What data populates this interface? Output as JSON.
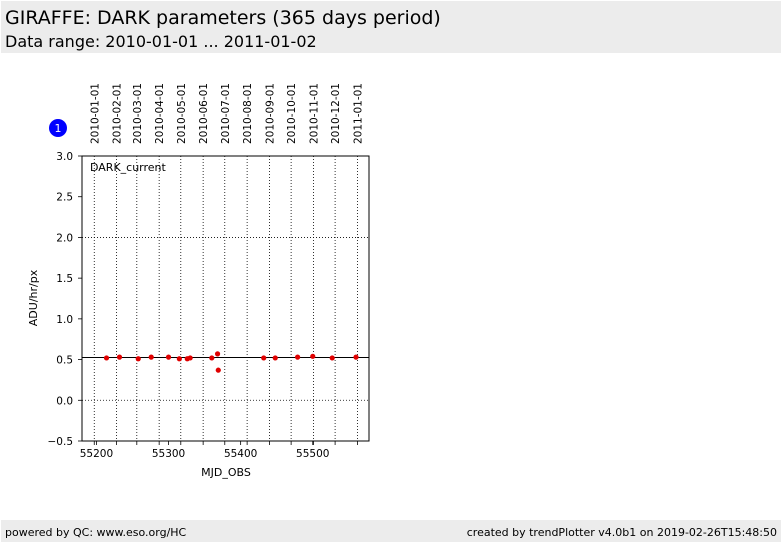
{
  "header": {
    "title": "GIRAFFE: DARK parameters (365 days period)",
    "subtitle": "Data range: 2010-01-01 ... 2011-01-02"
  },
  "footer": {
    "left": "powered by QC: www.eso.org/HC",
    "right": "created by trendPlotter v4.0b1 on 2019-02-26T15:48:50"
  },
  "colors": {
    "points": "#e00000",
    "badge": "#0000ff",
    "band": "#ececec"
  },
  "chart_data": {
    "type": "scatter",
    "panel_number": "1",
    "panel_label": "DARK_current",
    "xlabel": "MJD_OBS",
    "ylabel": "ADU/hr/px",
    "xlim": [
      55180,
      55578
    ],
    "ylim": [
      -0.5,
      3.0
    ],
    "x_ticks": [
      55200,
      55300,
      55400,
      55500
    ],
    "y_ticks": [
      -0.5,
      0.0,
      0.5,
      1.0,
      1.5,
      2.0,
      2.5,
      3.0
    ],
    "y_tick_labels": [
      "−0.5",
      "0.0",
      "0.5",
      "1.0",
      "1.5",
      "2.0",
      "2.5",
      "3.0"
    ],
    "y_dotted_gridlines": [
      0.0,
      2.0
    ],
    "reference_line": 0.525,
    "date_ticks": [
      {
        "label": "2010-01-01",
        "mjd": 55197
      },
      {
        "label": "2010-02-01",
        "mjd": 55228
      },
      {
        "label": "2010-03-01",
        "mjd": 55256
      },
      {
        "label": "2010-04-01",
        "mjd": 55287
      },
      {
        "label": "2010-05-01",
        "mjd": 55317
      },
      {
        "label": "2010-06-01",
        "mjd": 55348
      },
      {
        "label": "2010-07-01",
        "mjd": 55378
      },
      {
        "label": "2010-08-01",
        "mjd": 55409
      },
      {
        "label": "2010-09-01",
        "mjd": 55440
      },
      {
        "label": "2010-10-01",
        "mjd": 55470
      },
      {
        "label": "2010-11-01",
        "mjd": 55501
      },
      {
        "label": "2010-12-01",
        "mjd": 55531
      },
      {
        "label": "2011-01-01",
        "mjd": 55562
      }
    ],
    "points": [
      {
        "x": 55214,
        "y": 0.52
      },
      {
        "x": 55232,
        "y": 0.53
      },
      {
        "x": 55258,
        "y": 0.51
      },
      {
        "x": 55276,
        "y": 0.53
      },
      {
        "x": 55300,
        "y": 0.53
      },
      {
        "x": 55315,
        "y": 0.51
      },
      {
        "x": 55326,
        "y": 0.51
      },
      {
        "x": 55330,
        "y": 0.52
      },
      {
        "x": 55360,
        "y": 0.52
      },
      {
        "x": 55368,
        "y": 0.57
      },
      {
        "x": 55369,
        "y": 0.37
      },
      {
        "x": 55432,
        "y": 0.52
      },
      {
        "x": 55448,
        "y": 0.52
      },
      {
        "x": 55479,
        "y": 0.53
      },
      {
        "x": 55500,
        "y": 0.54
      },
      {
        "x": 55527,
        "y": 0.52
      },
      {
        "x": 55560,
        "y": 0.53
      }
    ]
  }
}
